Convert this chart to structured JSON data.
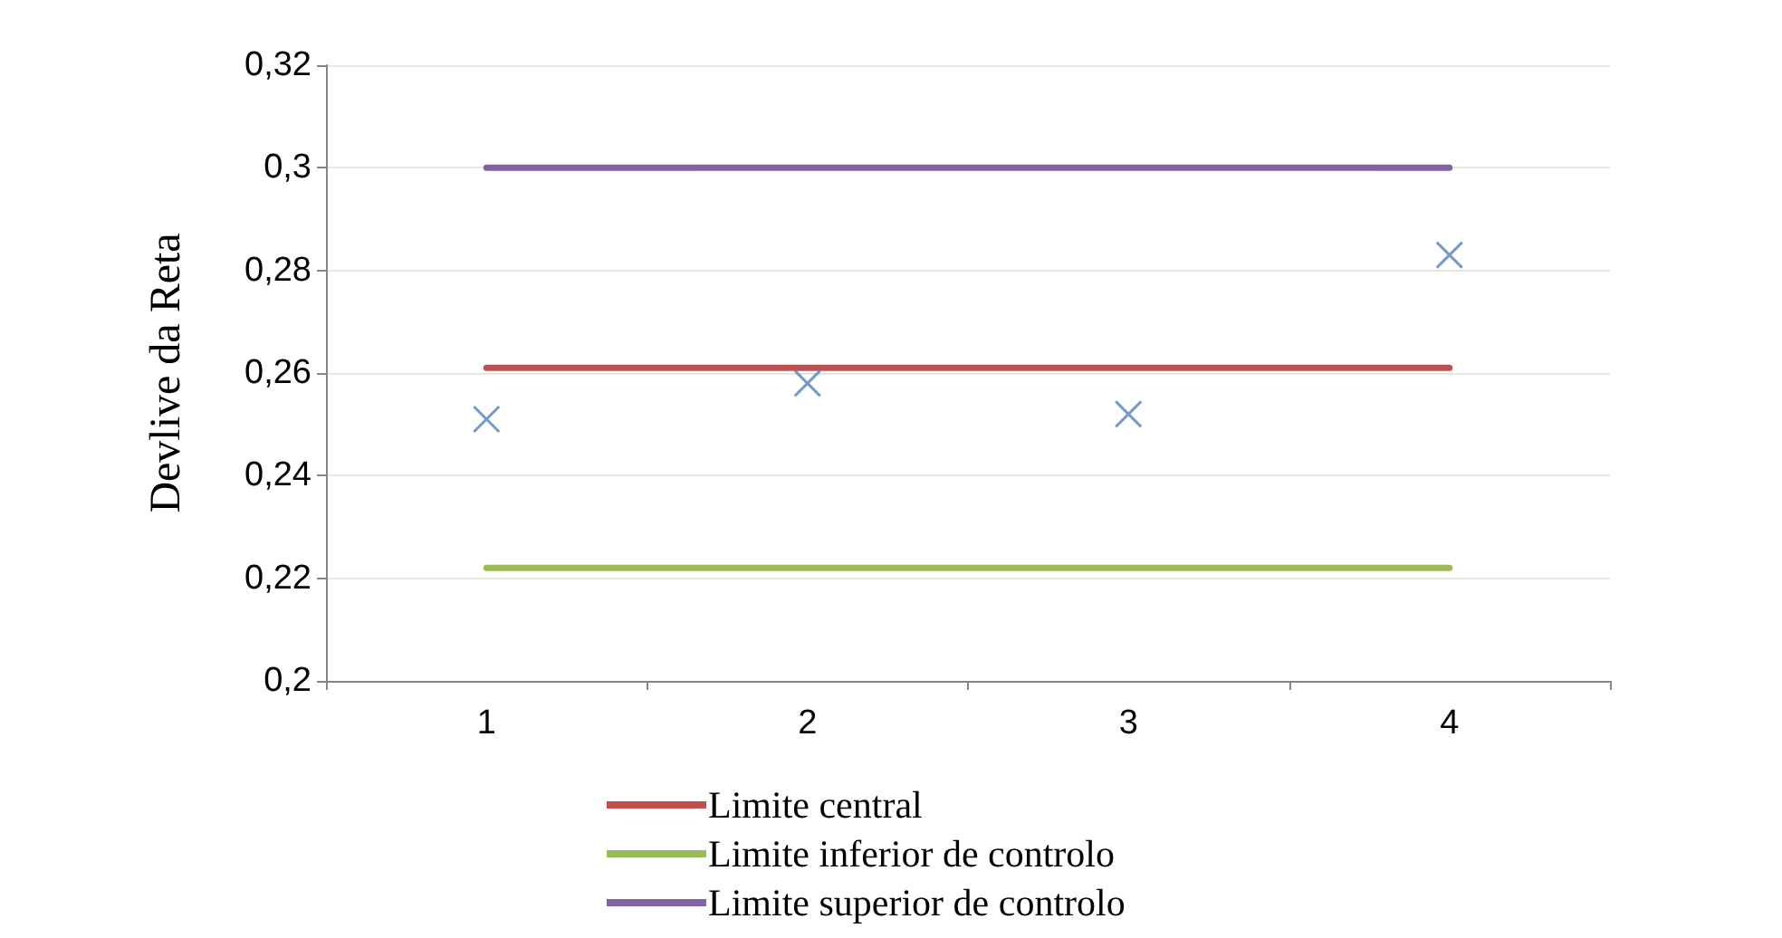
{
  "chart_data": {
    "type": "line",
    "ylabel": "Devlive da Reta",
    "categories": [
      "1",
      "2",
      "3",
      "4"
    ],
    "series": [
      {
        "type": "scatter",
        "marker": "cross",
        "color": "#4f81bd",
        "values": [
          0.251,
          0.258,
          0.252,
          0.283
        ]
      },
      {
        "name": "Limite central",
        "color": "#c0504d",
        "values": [
          0.261,
          0.261,
          0.261,
          0.261
        ]
      },
      {
        "name": "Limite inferior de controlo",
        "color": "#9bbb59",
        "values": [
          0.222,
          0.222,
          0.222,
          0.222
        ]
      },
      {
        "name": "Limite superior de controlo",
        "color": "#8064a2",
        "values": [
          0.3,
          0.3,
          0.3,
          0.3
        ]
      }
    ],
    "ylim": [
      0.2,
      0.32
    ],
    "yticks": [
      {
        "value": 0.2,
        "label": "0,2"
      },
      {
        "value": 0.22,
        "label": "0,22"
      },
      {
        "value": 0.24,
        "label": "0,24"
      },
      {
        "value": 0.26,
        "label": "0,26"
      },
      {
        "value": 0.28,
        "label": "0,28"
      },
      {
        "value": 0.3,
        "label": "0,3"
      },
      {
        "value": 0.32,
        "label": "0,32"
      }
    ],
    "grid": "y",
    "legend": "bottom",
    "marker": "none"
  }
}
